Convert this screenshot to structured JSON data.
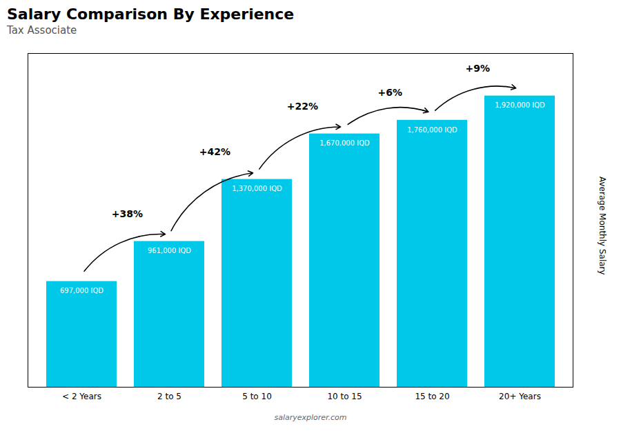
{
  "chart_data": {
    "type": "bar",
    "title": "Salary Comparison By Experience",
    "subtitle": "Tax Associate",
    "ylabel": "Average Monthly Salary",
    "caption": "salaryexplorer.com",
    "categories": [
      "< 2 Years",
      "2 to 5",
      "5 to 10",
      "10 to 15",
      "15 to 20",
      "20+ Years"
    ],
    "values": [
      697000,
      961000,
      1370000,
      1670000,
      1760000,
      1920000
    ],
    "value_labels": [
      "697,000 IQD",
      "961,000 IQD",
      "1,370,000 IQD",
      "1,670,000 IQD",
      "1,760,000 IQD",
      "1,920,000 IQD"
    ],
    "data_labels": true,
    "annotations": [
      "+38%",
      "+42%",
      "+22%",
      "+6%",
      "+9%"
    ],
    "color": "#00C8E8",
    "ylim": [
      0,
      2200000
    ],
    "tick_labels": "x",
    "grid": false
  }
}
